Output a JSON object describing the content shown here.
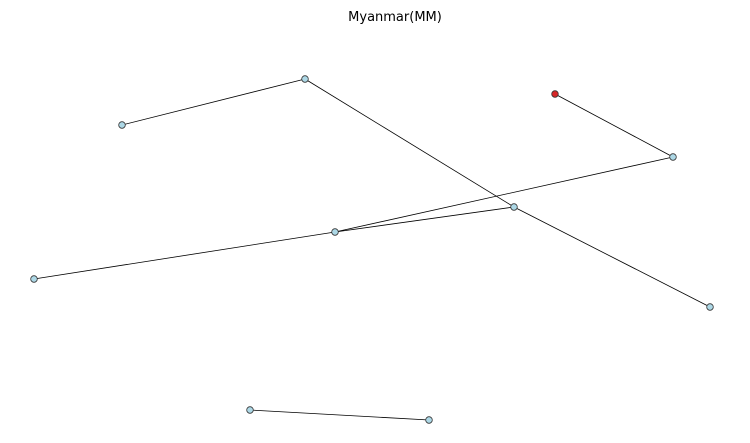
{
  "title": "Myanmar(MM)",
  "colors": {
    "node_default": "#add8e6",
    "node_highlight": "#d62728",
    "node_stroke": "#333333",
    "edge": "#000000",
    "background": "#ffffff"
  },
  "graph": {
    "nodes": [
      {
        "id": "n1",
        "highlighted": false
      },
      {
        "id": "n2",
        "highlighted": false
      },
      {
        "id": "n3",
        "highlighted": true
      },
      {
        "id": "n4",
        "highlighted": false
      },
      {
        "id": "n5",
        "highlighted": false
      },
      {
        "id": "n6",
        "highlighted": false
      },
      {
        "id": "n7",
        "highlighted": false
      },
      {
        "id": "n8",
        "highlighted": false
      },
      {
        "id": "n9",
        "highlighted": false
      },
      {
        "id": "n10",
        "highlighted": false
      }
    ],
    "edges": [
      {
        "source": "n1",
        "target": "n2"
      },
      {
        "source": "n2",
        "target": "n5"
      },
      {
        "source": "n5",
        "target": "n8"
      },
      {
        "source": "n3",
        "target": "n4"
      },
      {
        "source": "n4",
        "target": "n6"
      },
      {
        "source": "n6",
        "target": "n7"
      },
      {
        "source": "n6",
        "target": "n5"
      },
      {
        "source": "n9",
        "target": "n10"
      }
    ]
  }
}
